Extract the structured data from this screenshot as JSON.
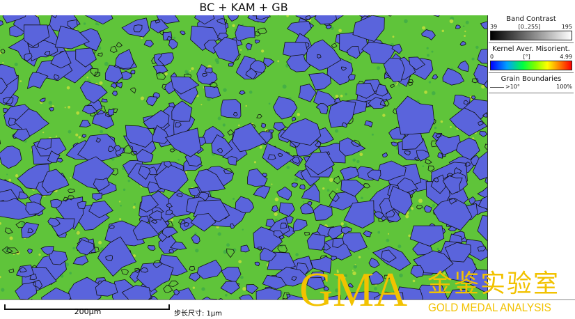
{
  "title": "BC + KAM + GB",
  "legend": {
    "band_contrast": {
      "title": "Band Contrast",
      "min": "39",
      "range": "[0..255]",
      "max": "195"
    },
    "kam": {
      "title": "Kernel Aver. Misorient.",
      "min": "0",
      "unit": "[°]",
      "max": "4.99"
    },
    "grain_boundaries": {
      "title": "Grain Boundaries",
      "label": ">10°",
      "percent": "100%"
    }
  },
  "scale_bar": {
    "label": "200μm"
  },
  "step_size": "步长尺寸: 1μm",
  "watermark": {
    "logo": "GMA",
    "chinese": "金鉴实验室",
    "english": "GOLD MEDAL ANALYSIS"
  },
  "colors": {
    "grain_fill": "#5a64dc",
    "kam_green": "#5fc43a",
    "kam_yellow": "#d8e63a",
    "boundary": "#111111",
    "watermark": "#f2c200"
  }
}
